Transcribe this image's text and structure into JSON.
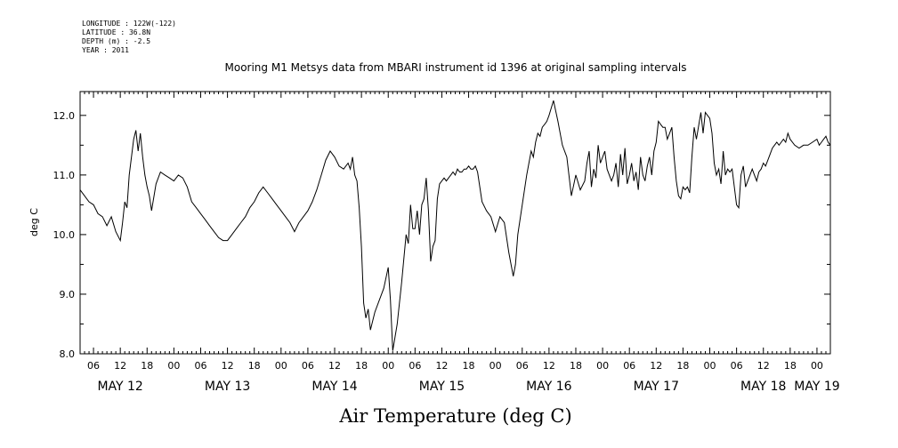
{
  "header": {
    "longitude": "LONGITUDE : 122W(-122)",
    "latitude": "LATITUDE : 36.8N",
    "depth": "DEPTH (m) : -2.5",
    "year": "YEAR : 2011"
  },
  "chart_data": {
    "type": "line",
    "title": "Mooring M1 Metsys data from MBARI instrument id 1396 at original sampling intervals",
    "xlabel": "Air Temperature (deg C)",
    "ylabel": "deg C",
    "ylim": [
      8.0,
      12.4
    ],
    "yticks": [
      "8.0",
      "9.0",
      "10.0",
      "11.0",
      "12.0"
    ],
    "xlim_hours": [
      3,
      171
    ],
    "hour_ticks": [
      {
        "h": 6,
        "label": "06"
      },
      {
        "h": 12,
        "label": "12"
      },
      {
        "h": 18,
        "label": "18"
      },
      {
        "h": 24,
        "label": "00"
      },
      {
        "h": 30,
        "label": "06"
      },
      {
        "h": 36,
        "label": "12"
      },
      {
        "h": 42,
        "label": "18"
      },
      {
        "h": 48,
        "label": "00"
      },
      {
        "h": 54,
        "label": "06"
      },
      {
        "h": 60,
        "label": "12"
      },
      {
        "h": 66,
        "label": "18"
      },
      {
        "h": 72,
        "label": "00"
      },
      {
        "h": 78,
        "label": "06"
      },
      {
        "h": 84,
        "label": "12"
      },
      {
        "h": 90,
        "label": "18"
      },
      {
        "h": 96,
        "label": "00"
      },
      {
        "h": 102,
        "label": "06"
      },
      {
        "h": 108,
        "label": "12"
      },
      {
        "h": 114,
        "label": "18"
      },
      {
        "h": 120,
        "label": "00"
      },
      {
        "h": 126,
        "label": "06"
      },
      {
        "h": 132,
        "label": "12"
      },
      {
        "h": 138,
        "label": "18"
      },
      {
        "h": 144,
        "label": "00"
      },
      {
        "h": 150,
        "label": "06"
      },
      {
        "h": 156,
        "label": "12"
      },
      {
        "h": 162,
        "label": "18"
      },
      {
        "h": 168,
        "label": "00"
      }
    ],
    "day_labels": [
      {
        "h": 12,
        "label": "MAY 12"
      },
      {
        "h": 36,
        "label": "MAY 13"
      },
      {
        "h": 60,
        "label": "MAY 14"
      },
      {
        "h": 84,
        "label": "MAY 15"
      },
      {
        "h": 108,
        "label": "MAY 16"
      },
      {
        "h": 132,
        "label": "MAY 17"
      },
      {
        "h": 156,
        "label": "MAY 18"
      },
      {
        "h": 168,
        "label": "MAY 19"
      }
    ],
    "series": [
      {
        "x": [
          3.0,
          4.0,
          5.0,
          6.0,
          7.0,
          8.0,
          9.0,
          10.0,
          11.0,
          12.0,
          12.5,
          13.0,
          13.5,
          14.0,
          15.0,
          15.5,
          16.0,
          16.5,
          17.0,
          17.5,
          18.0,
          18.5,
          19.0,
          20.0,
          21.0,
          22.0,
          23.0,
          24.0,
          25.0,
          26.0,
          27.0,
          28.0,
          29.0,
          30.0,
          31.0,
          32.0,
          33.0,
          34.0,
          35.0,
          36.0,
          37.0,
          38.0,
          39.0,
          40.0,
          41.0,
          42.0,
          43.0,
          44.0,
          45.0,
          46.0,
          47.0,
          48.0,
          49.0,
          50.0,
          51.0,
          52.0,
          53.0,
          54.0,
          55.0,
          56.0,
          57.0,
          58.0,
          59.0,
          60.0,
          61.0,
          62.0,
          63.0,
          63.5,
          64.0,
          64.5,
          65.0,
          65.5,
          66.0,
          66.5,
          67.0,
          67.5,
          68.0,
          69.0,
          70.0,
          71.0,
          72.0,
          72.5,
          73.0,
          74.0,
          75.0,
          76.0,
          76.5,
          77.0,
          77.5,
          78.0,
          78.5,
          79.0,
          79.5,
          80.0,
          80.5,
          81.0,
          81.5,
          82.0,
          82.5,
          83.0,
          83.5,
          84.0,
          84.5,
          85.0,
          85.5,
          86.0,
          86.5,
          87.0,
          87.5,
          88.0,
          88.5,
          89.0,
          89.5,
          90.0,
          90.5,
          91.0,
          91.5,
          92.0,
          93.0,
          94.0,
          95.0,
          96.0,
          97.0,
          98.0,
          99.0,
          100.0,
          100.5,
          101.0,
          102.0,
          103.0,
          104.0,
          104.5,
          105.0,
          105.5,
          106.0,
          106.5,
          107.0,
          107.5,
          108.0,
          109.0,
          110.0,
          111.0,
          112.0,
          113.0,
          114.0,
          115.0,
          116.0,
          116.5,
          117.0,
          117.5,
          118.0,
          118.5,
          119.0,
          119.5,
          120.0,
          120.5,
          121.0,
          121.5,
          122.0,
          122.5,
          123.0,
          123.5,
          124.0,
          124.5,
          125.0,
          125.5,
          126.0,
          126.5,
          127.0,
          127.5,
          128.0,
          128.5,
          129.0,
          129.5,
          130.0,
          130.5,
          131.0,
          131.5,
          132.0,
          132.5,
          133.0,
          133.5,
          134.0,
          134.5,
          135.0,
          135.5,
          136.0,
          136.5,
          137.0,
          137.5,
          138.0,
          138.5,
          139.0,
          139.5,
          140.0,
          140.5,
          141.0,
          142.0,
          142.5,
          143.0,
          144.0,
          144.5,
          145.0,
          145.5,
          146.0,
          146.5,
          147.0,
          147.5,
          148.0,
          148.5,
          149.0,
          149.5,
          150.0,
          150.5,
          151.0,
          151.5,
          152.0,
          152.5,
          153.0,
          153.5,
          154.0,
          154.5,
          155.0,
          155.5,
          156.0,
          156.5,
          157.0,
          157.5,
          158.0,
          158.5,
          159.0,
          159.5,
          160.0,
          160.5,
          161.0,
          161.5,
          162.0,
          163.0,
          164.0,
          165.0,
          166.0,
          167.0,
          168.0,
          168.5,
          169.0,
          169.5,
          170.0,
          170.5,
          171.0
        ],
        "y": [
          10.75,
          10.65,
          10.55,
          10.5,
          10.35,
          10.3,
          10.15,
          10.3,
          10.05,
          9.9,
          10.2,
          10.55,
          10.45,
          11.0,
          11.6,
          11.75,
          11.4,
          11.7,
          11.3,
          11.0,
          10.8,
          10.65,
          10.4,
          10.85,
          11.05,
          11.0,
          10.95,
          10.9,
          11.0,
          10.95,
          10.8,
          10.55,
          10.45,
          10.35,
          10.25,
          10.15,
          10.05,
          9.95,
          9.9,
          9.9,
          10.0,
          10.1,
          10.2,
          10.3,
          10.45,
          10.55,
          10.7,
          10.8,
          10.7,
          10.6,
          10.5,
          10.4,
          10.3,
          10.2,
          10.05,
          10.2,
          10.3,
          10.4,
          10.55,
          10.75,
          11.0,
          11.25,
          11.4,
          11.3,
          11.15,
          11.1,
          11.2,
          11.1,
          11.3,
          11.0,
          10.9,
          10.45,
          9.8,
          8.85,
          8.6,
          8.75,
          8.4,
          8.7,
          8.9,
          9.1,
          9.45,
          8.9,
          8.05,
          8.5,
          9.2,
          10.0,
          9.85,
          10.5,
          10.1,
          10.1,
          10.4,
          10.0,
          10.5,
          10.6,
          10.95,
          10.4,
          9.55,
          9.8,
          9.9,
          10.6,
          10.85,
          10.9,
          10.95,
          10.9,
          10.95,
          11.0,
          11.05,
          11.0,
          11.1,
          11.05,
          11.05,
          11.1,
          11.1,
          11.15,
          11.1,
          11.1,
          11.15,
          11.05,
          10.55,
          10.4,
          10.3,
          10.05,
          10.3,
          10.2,
          9.7,
          9.3,
          9.5,
          10.0,
          10.5,
          11.0,
          11.4,
          11.3,
          11.55,
          11.7,
          11.65,
          11.8,
          11.85,
          11.9,
          12.0,
          12.25,
          11.9,
          11.5,
          11.3,
          10.65,
          11.0,
          10.75,
          10.9,
          11.2,
          11.4,
          10.8,
          11.1,
          10.95,
          11.5,
          11.2,
          11.3,
          11.4,
          11.1,
          11.0,
          10.9,
          11.0,
          11.2,
          10.8,
          11.35,
          11.0,
          11.45,
          10.85,
          11.0,
          11.2,
          10.9,
          11.05,
          10.75,
          11.3,
          11.0,
          10.9,
          11.15,
          11.3,
          11.0,
          11.4,
          11.55,
          11.9,
          11.85,
          11.8,
          11.8,
          11.6,
          11.7,
          11.8,
          11.3,
          10.9,
          10.65,
          10.6,
          10.8,
          10.75,
          10.8,
          10.7,
          11.3,
          11.8,
          11.6,
          12.05,
          11.7,
          12.05,
          11.95,
          11.7,
          11.2,
          11.0,
          11.1,
          10.85,
          11.4,
          11.0,
          11.1,
          11.05,
          11.1,
          10.8,
          10.5,
          10.45,
          11.0,
          11.15,
          10.8,
          10.9,
          11.0,
          11.1,
          11.0,
          10.9,
          11.05,
          11.1,
          11.2,
          11.15,
          11.25,
          11.35,
          11.45,
          11.5,
          11.55,
          11.5,
          11.55,
          11.6,
          11.55,
          11.7,
          11.6,
          11.5,
          11.45,
          11.5,
          11.5,
          11.55,
          11.6,
          11.5,
          11.55,
          11.6,
          11.65,
          11.55,
          11.5
        ]
      }
    ]
  }
}
